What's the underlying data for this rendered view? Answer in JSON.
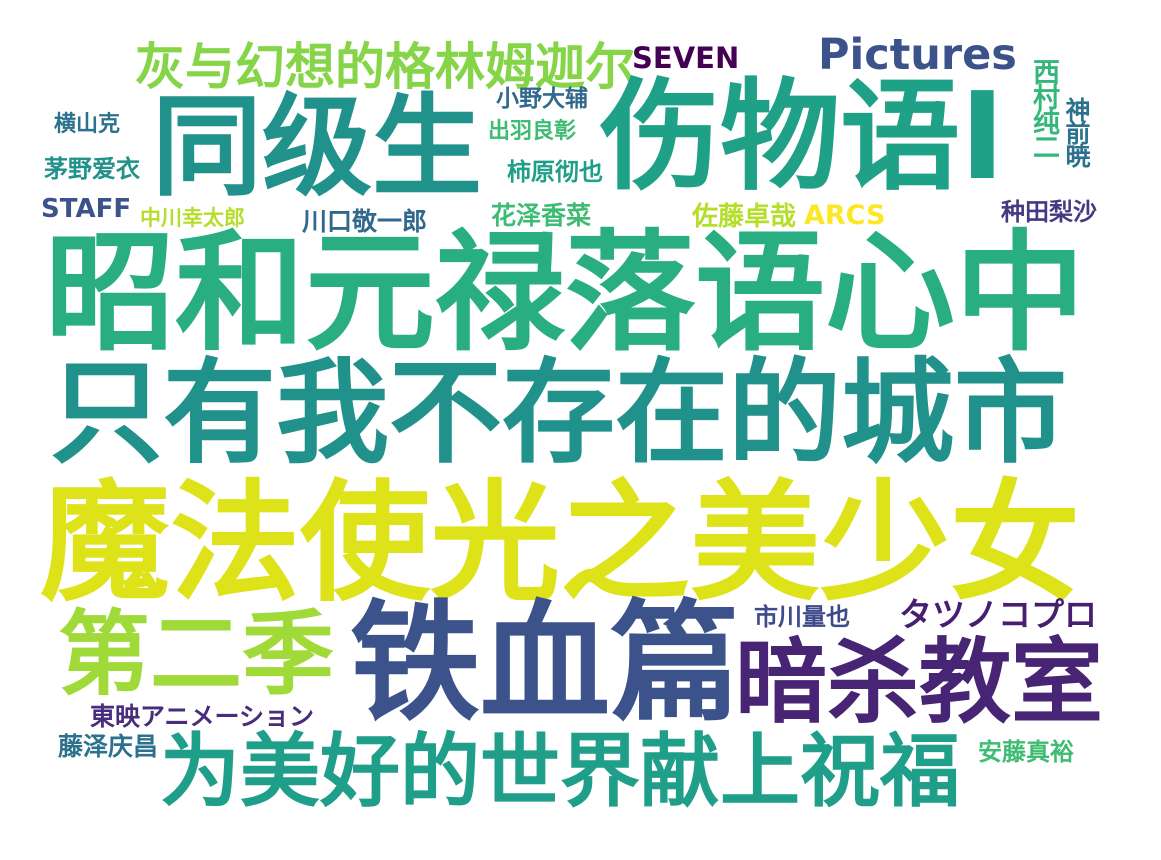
{
  "words": [
    {
      "text": "灰与幻想的格林姆迦尔",
      "color": "#86d549"
    },
    {
      "text": "SEVEN",
      "color": "#440154"
    },
    {
      "text": "Pictures",
      "color": "#3b528b"
    },
    {
      "text": "同级生",
      "color": "#21918c"
    },
    {
      "text": "伤物语I",
      "color": "#1fa187"
    },
    {
      "text": "西村纯二",
      "color": "#35b779"
    },
    {
      "text": "神前暁",
      "color": "#2c728e"
    },
    {
      "text": "横山克",
      "color": "#2c728e"
    },
    {
      "text": "小野大辅",
      "color": "#31688e"
    },
    {
      "text": "出羽良彰",
      "color": "#3fbc73"
    },
    {
      "text": "茅野爱衣",
      "color": "#21918c"
    },
    {
      "text": "柿原彻也",
      "color": "#1f9e89"
    },
    {
      "text": "STAFF",
      "color": "#3b528b"
    },
    {
      "text": "中川幸太郎",
      "color": "#b5de2b"
    },
    {
      "text": "川口敬一郎",
      "color": "#31688e"
    },
    {
      "text": "花泽香菜",
      "color": "#3fbc73"
    },
    {
      "text": "佐藤卓哉",
      "color": "#b5de2b"
    },
    {
      "text": "ARCS",
      "color": "#fde725"
    },
    {
      "text": "种田梨沙",
      "color": "#443983"
    },
    {
      "text": "昭和元禄落语心中",
      "color": "#28ae80"
    },
    {
      "text": "只有我不存在的城市",
      "color": "#21918c"
    },
    {
      "text": "魔法使光之美少女",
      "color": "#dde318"
    },
    {
      "text": "市川量也",
      "color": "#3e4a89"
    },
    {
      "text": "タツノコプロ",
      "color": "#481f70"
    },
    {
      "text": "第二季",
      "color": "#a0da39"
    },
    {
      "text": "铁血篇",
      "color": "#3b528b"
    },
    {
      "text": "暗杀教室",
      "color": "#482475"
    },
    {
      "text": "東映アニメーション",
      "color": "#472d7b"
    },
    {
      "text": "藤泽庆昌",
      "color": "#2c728e"
    },
    {
      "text": "为美好的世界献上祝福",
      "color": "#1f9e89"
    },
    {
      "text": "安藤真裕",
      "color": "#3fbc73"
    }
  ]
}
